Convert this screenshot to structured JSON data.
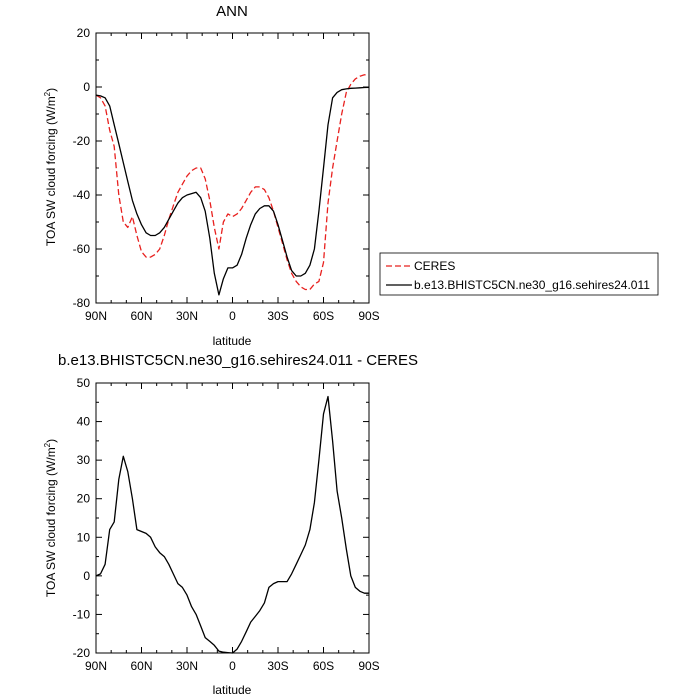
{
  "chart_data": [
    {
      "type": "line",
      "title": "ANN",
      "xlabel": "latitude",
      "ylabel": "TOA SW cloud forcing (W/m",
      "ylabel_sup": "2",
      "ylabel_end": ")",
      "xlim": [
        90,
        -90
      ],
      "ylim": [
        -80,
        20
      ],
      "xticks": [
        {
          "value": 90,
          "label": "90N"
        },
        {
          "value": 60,
          "label": "60N"
        },
        {
          "value": 30,
          "label": "30N"
        },
        {
          "value": 0,
          "label": "0"
        },
        {
          "value": -30,
          "label": "30S"
        },
        {
          "value": -60,
          "label": "60S"
        },
        {
          "value": -90,
          "label": "90S"
        }
      ],
      "yticks": [
        20,
        0,
        -20,
        -40,
        -60,
        -80
      ],
      "legend_position": "right",
      "series": [
        {
          "name": "CERES",
          "color": "#e8211f",
          "dash": true,
          "x": [
            90,
            87,
            84,
            81,
            78,
            75,
            72,
            69,
            66,
            63,
            60,
            57,
            54,
            51,
            48,
            45,
            42,
            39,
            36,
            33,
            30,
            27,
            24,
            21,
            18,
            15,
            12,
            9,
            6,
            3,
            0,
            -3,
            -6,
            -9,
            -12,
            -15,
            -18,
            -21,
            -24,
            -27,
            -30,
            -33,
            -36,
            -39,
            -42,
            -45,
            -48,
            -51,
            -54,
            -57,
            -60,
            -63,
            -66,
            -69,
            -72,
            -75,
            -78,
            -81,
            -84,
            -87,
            -90
          ],
          "y": [
            -3,
            -4,
            -7,
            -16,
            -22,
            -40,
            -50,
            -52,
            -48,
            -55,
            -61,
            -63,
            -63,
            -62,
            -60,
            -55,
            -49,
            -44,
            -39,
            -36,
            -33,
            -31,
            -30,
            -30,
            -34,
            -42,
            -52,
            -60,
            -50,
            -47,
            -48,
            -47,
            -45,
            -42,
            -39,
            -37,
            -37,
            -38,
            -41,
            -46,
            -52,
            -58,
            -64,
            -69,
            -72,
            -74,
            -75,
            -75,
            -73,
            -72,
            -65,
            -43,
            -30,
            -20,
            -10,
            -2,
            1,
            3,
            4,
            4.5,
            4.5
          ]
        },
        {
          "name": "b.e13.BHISTC5CN.ne30_g16.sehires24.011",
          "color": "#000000",
          "dash": false,
          "x": [
            90,
            87,
            84,
            81,
            78,
            75,
            72,
            69,
            66,
            63,
            60,
            57,
            54,
            51,
            48,
            45,
            42,
            39,
            36,
            33,
            30,
            27,
            24,
            21,
            18,
            15,
            12,
            9,
            6,
            3,
            0,
            -3,
            -6,
            -9,
            -12,
            -15,
            -18,
            -21,
            -24,
            -27,
            -30,
            -33,
            -36,
            -39,
            -42,
            -45,
            -48,
            -51,
            -54,
            -57,
            -60,
            -63,
            -66,
            -69,
            -72,
            -75,
            -78,
            -81,
            -84,
            -87,
            -90
          ],
          "y": [
            -3,
            -3.3,
            -4,
            -7,
            -14,
            -21,
            -28,
            -35,
            -42,
            -47,
            -51,
            -54,
            -55,
            -55,
            -54,
            -52,
            -49,
            -46,
            -43,
            -41,
            -40,
            -39.5,
            -39,
            -41,
            -46,
            -56,
            -69,
            -77,
            -71,
            -67,
            -67,
            -66,
            -62,
            -56,
            -51,
            -47,
            -45,
            -44,
            -44,
            -46,
            -51,
            -57,
            -63,
            -68,
            -70,
            -70,
            -69,
            -66,
            -60,
            -46,
            -30,
            -14,
            -4,
            -2,
            -1,
            -0.7,
            -0.5,
            -0.4,
            -0.3,
            -0.2,
            -0.1
          ]
        }
      ]
    },
    {
      "type": "line",
      "title": "b.e13.BHISTC5CN.ne30_g16.sehires24.011 - CERES",
      "xlabel": "latitude",
      "ylabel": "TOA SW cloud forcing (W/m",
      "ylabel_sup": "2",
      "ylabel_end": ")",
      "xlim": [
        90,
        -90
      ],
      "ylim": [
        -20,
        50
      ],
      "xticks": [
        {
          "value": 90,
          "label": "90N"
        },
        {
          "value": 60,
          "label": "60N"
        },
        {
          "value": 30,
          "label": "30N"
        },
        {
          "value": 0,
          "label": "0"
        },
        {
          "value": -30,
          "label": "30S"
        },
        {
          "value": -60,
          "label": "60S"
        },
        {
          "value": -90,
          "label": "90S"
        }
      ],
      "yticks": [
        50,
        40,
        30,
        20,
        10,
        0,
        -10,
        -20
      ],
      "series": [
        {
          "color": "#000000",
          "dash": false,
          "x": [
            90,
            87,
            84,
            81,
            78,
            75,
            72,
            69,
            66,
            63,
            60,
            57,
            54,
            51,
            48,
            45,
            42,
            39,
            36,
            33,
            30,
            27,
            24,
            21,
            18,
            15,
            12,
            9,
            6,
            3,
            0,
            -3,
            -6,
            -9,
            -12,
            -15,
            -18,
            -21,
            -24,
            -27,
            -30,
            -33,
            -36,
            -39,
            -42,
            -45,
            -48,
            -51,
            -54,
            -57,
            -60,
            -63,
            -66,
            -69,
            -72,
            -75,
            -78,
            -81,
            -84,
            -87,
            -90
          ],
          "y": [
            0,
            0.5,
            3,
            12,
            14,
            25,
            31,
            27,
            20,
            12,
            11.5,
            11,
            10,
            7.5,
            6,
            5,
            3,
            0.5,
            -2,
            -3,
            -5,
            -8,
            -10,
            -13,
            -16,
            -17,
            -18,
            -19.5,
            -19.8,
            -19.9,
            -20,
            -19,
            -17,
            -14.5,
            -12,
            -10.5,
            -9,
            -7,
            -3,
            -2,
            -1.5,
            -1.5,
            -1.5,
            0.5,
            3,
            5.5,
            8,
            12,
            19,
            30,
            42,
            46.5,
            35,
            22,
            15,
            7,
            0,
            -3,
            -4,
            -4.5,
            -4.5
          ]
        }
      ]
    }
  ]
}
